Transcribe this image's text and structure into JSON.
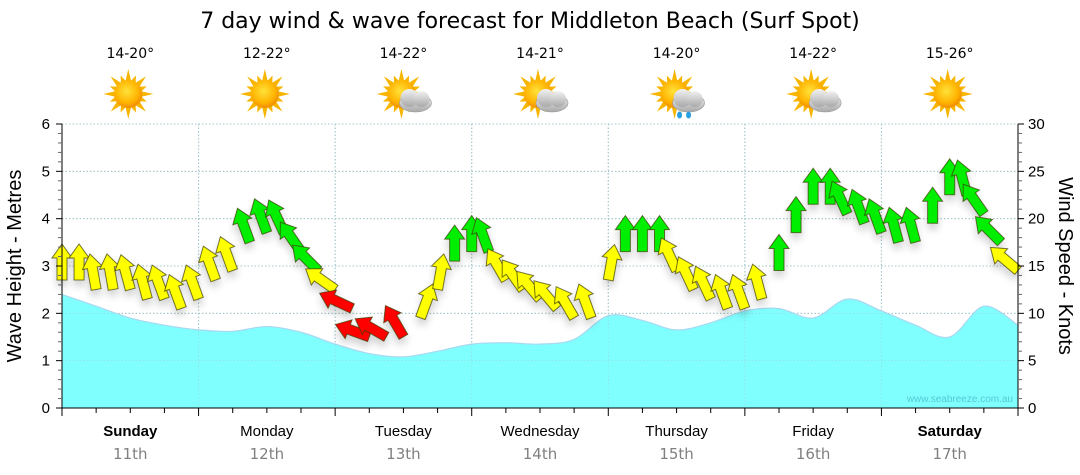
{
  "chart_data": {
    "type": "area",
    "title": "7 day wind & wave forecast for Middleton Beach  (Surf Spot)",
    "ylabel_left": "Wave Height - Metres",
    "ylabel_right": "Wind Speed - Knots",
    "ylim_left": [
      0,
      6
    ],
    "ylim_right": [
      0,
      30
    ],
    "yticks_left": [
      "0",
      "1",
      "2",
      "3",
      "4",
      "5",
      "6"
    ],
    "yticks_right": [
      "0",
      "5",
      "10",
      "15",
      "20",
      "25",
      "30"
    ],
    "grid": true,
    "watermark": "www.seabreeze.com.au",
    "days": [
      {
        "day": "Sunday",
        "date": "11th",
        "bold": true,
        "temp": "14-20°",
        "weather": "sunny-icon"
      },
      {
        "day": "Monday",
        "date": "12th",
        "bold": false,
        "temp": "12-22°",
        "weather": "sunny-icon"
      },
      {
        "day": "Tuesday",
        "date": "13th",
        "bold": false,
        "temp": "14-22°",
        "weather": "partly-cloudy-icon"
      },
      {
        "day": "Wednesday",
        "date": "14th",
        "bold": false,
        "temp": "14-21°",
        "weather": "partly-cloudy-icon"
      },
      {
        "day": "Thursday",
        "date": "15th",
        "bold": false,
        "temp": "14-20°",
        "weather": "showers-icon"
      },
      {
        "day": "Friday",
        "date": "16th",
        "bold": false,
        "temp": "14-22°",
        "weather": "partly-cloudy-icon"
      },
      {
        "day": "Saturday",
        "date": "17th",
        "bold": true,
        "temp": "15-26°",
        "weather": "sunny-icon"
      }
    ],
    "wave_series": {
      "name": "Wave Height (m)",
      "color": "#80ffff",
      "x_hours": [
        0,
        6,
        12,
        18,
        24,
        30,
        36,
        42,
        48,
        54,
        60,
        66,
        72,
        78,
        84,
        90,
        96,
        102,
        108,
        114,
        120,
        126,
        132,
        138,
        144,
        150,
        156,
        162,
        168
      ],
      "values": [
        2.4,
        2.15,
        1.9,
        1.75,
        1.65,
        1.62,
        1.72,
        1.6,
        1.35,
        1.15,
        1.08,
        1.2,
        1.35,
        1.38,
        1.35,
        1.45,
        1.95,
        1.85,
        1.65,
        1.8,
        2.05,
        2.1,
        1.9,
        2.3,
        2.05,
        1.75,
        1.5,
        2.15,
        1.75
      ]
    },
    "wind_series": {
      "name": "Wind Speed (knots)",
      "colors": {
        "light": "#ffff00",
        "moderate": "#00ee00",
        "strong": "#ff0000"
      },
      "points": [
        {
          "h": 0,
          "kt": 15,
          "dir": 0
        },
        {
          "h": 3,
          "kt": 15,
          "dir": 0
        },
        {
          "h": 6,
          "kt": 14,
          "dir": -10
        },
        {
          "h": 9,
          "kt": 14,
          "dir": -10
        },
        {
          "h": 12,
          "kt": 14,
          "dir": -15
        },
        {
          "h": 15,
          "kt": 13,
          "dir": -15
        },
        {
          "h": 18,
          "kt": 13,
          "dir": -20
        },
        {
          "h": 21,
          "kt": 12,
          "dir": -20
        },
        {
          "h": 24,
          "kt": 13,
          "dir": -20
        },
        {
          "h": 27,
          "kt": 15,
          "dir": -20
        },
        {
          "h": 30,
          "kt": 16,
          "dir": -20
        },
        {
          "h": 33,
          "kt": 19,
          "dir": -20
        },
        {
          "h": 36,
          "kt": 20,
          "dir": -20
        },
        {
          "h": 39,
          "kt": 20,
          "dir": -25
        },
        {
          "h": 42,
          "kt": 18,
          "dir": -35
        },
        {
          "h": 45,
          "kt": 16,
          "dir": -45
        },
        {
          "h": 48,
          "kt": 14,
          "dir": -55
        },
        {
          "h": 51,
          "kt": 12,
          "dir": -65
        },
        {
          "h": 54,
          "kt": 9,
          "dir": -70
        },
        {
          "h": 57,
          "kt": 9,
          "dir": -60
        },
        {
          "h": 60,
          "kt": 9,
          "dir": -30
        },
        {
          "h": 63,
          "kt": 11,
          "dir": 20
        },
        {
          "h": 66,
          "kt": 14,
          "dir": 10
        },
        {
          "h": 69,
          "kt": 17,
          "dir": 0
        },
        {
          "h": 72,
          "kt": 18,
          "dir": 0
        },
        {
          "h": 75,
          "kt": 18,
          "dir": -20
        },
        {
          "h": 78,
          "kt": 15,
          "dir": -30
        },
        {
          "h": 81,
          "kt": 14,
          "dir": -35
        },
        {
          "h": 84,
          "kt": 13,
          "dir": -40
        },
        {
          "h": 87,
          "kt": 12,
          "dir": -40
        },
        {
          "h": 90,
          "kt": 11,
          "dir": -30
        },
        {
          "h": 93,
          "kt": 11,
          "dir": -20
        },
        {
          "h": 96,
          "kt": 15,
          "dir": 10
        },
        {
          "h": 99,
          "kt": 18,
          "dir": 0
        },
        {
          "h": 102,
          "kt": 18,
          "dir": 0
        },
        {
          "h": 105,
          "kt": 18,
          "dir": 0
        },
        {
          "h": 108,
          "kt": 16,
          "dir": -25
        },
        {
          "h": 111,
          "kt": 14,
          "dir": -25
        },
        {
          "h": 114,
          "kt": 13,
          "dir": -25
        },
        {
          "h": 117,
          "kt": 12,
          "dir": -20
        },
        {
          "h": 120,
          "kt": 12,
          "dir": -20
        },
        {
          "h": 123,
          "kt": 13,
          "dir": -15
        },
        {
          "h": 126,
          "kt": 16,
          "dir": 0
        },
        {
          "h": 129,
          "kt": 20,
          "dir": 0
        },
        {
          "h": 132,
          "kt": 23,
          "dir": 0
        },
        {
          "h": 135,
          "kt": 23,
          "dir": 0
        },
        {
          "h": 138,
          "kt": 22,
          "dir": -25
        },
        {
          "h": 141,
          "kt": 21,
          "dir": -20
        },
        {
          "h": 144,
          "kt": 20,
          "dir": -20
        },
        {
          "h": 147,
          "kt": 19,
          "dir": -15
        },
        {
          "h": 150,
          "kt": 19,
          "dir": -15
        },
        {
          "h": 153,
          "kt": 21,
          "dir": 0
        },
        {
          "h": 156,
          "kt": 24,
          "dir": 0
        },
        {
          "h": 159,
          "kt": 24,
          "dir": -15
        },
        {
          "h": 162,
          "kt": 22,
          "dir": -35
        },
        {
          "h": 165,
          "kt": 19,
          "dir": -45
        },
        {
          "h": 168,
          "kt": 16,
          "dir": -50
        }
      ]
    }
  }
}
